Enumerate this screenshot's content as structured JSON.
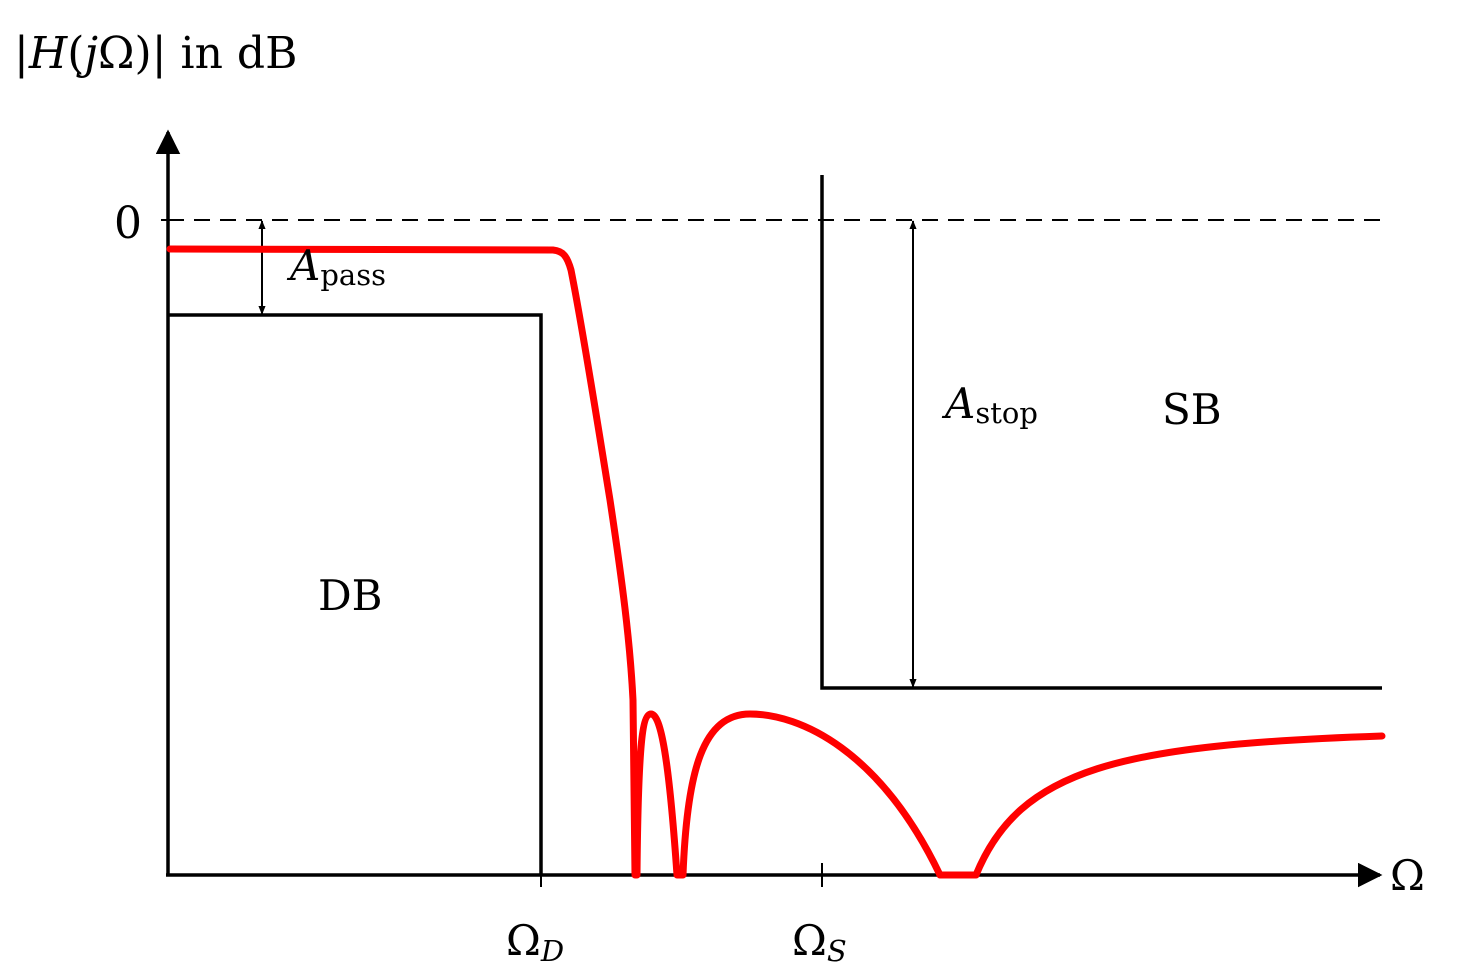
{
  "title": {
    "bar_left": "|",
    "H": "H",
    "paren_open": "(",
    "j": "j",
    "Omega": "Ω",
    "paren_close": ")",
    "bar_right": "|",
    "suffix": " in dB"
  },
  "axes": {
    "y_tick_zero": "0",
    "x_label": "Ω",
    "omega_d": {
      "base": "Ω",
      "sub": "D"
    },
    "omega_s": {
      "base": "Ω",
      "sub": "S"
    }
  },
  "annotations": {
    "a_pass": {
      "base": "A",
      "sub": "pass"
    },
    "a_stop": {
      "base": "A",
      "sub": "stop"
    },
    "db_label": "DB",
    "sb_label": "SB"
  },
  "colors": {
    "response": "#ff0000",
    "lines": "#000000"
  }
}
